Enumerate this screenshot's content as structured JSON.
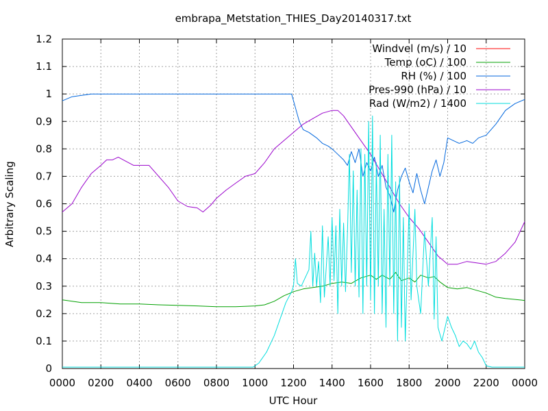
{
  "chart_data": {
    "type": "line",
    "title": "embrapa_Metstation_THIES_Day20140317.txt",
    "xlabel": "UTC Hour",
    "ylabel": "Arbitrary Scaling",
    "xlim": [
      0,
      24
    ],
    "ylim": [
      0,
      1.2
    ],
    "grid": true,
    "legend_position": "top-right",
    "x_ticks": [
      {
        "value": 0,
        "label": "0000"
      },
      {
        "value": 2,
        "label": "0200"
      },
      {
        "value": 4,
        "label": "0400"
      },
      {
        "value": 6,
        "label": "0600"
      },
      {
        "value": 8,
        "label": "0800"
      },
      {
        "value": 10,
        "label": "1000"
      },
      {
        "value": 12,
        "label": "1200"
      },
      {
        "value": 14,
        "label": "1400"
      },
      {
        "value": 16,
        "label": "1600"
      },
      {
        "value": 18,
        "label": "1800"
      },
      {
        "value": 20,
        "label": "2000"
      },
      {
        "value": 22,
        "label": "2200"
      },
      {
        "value": 24,
        "label": "0000"
      }
    ],
    "y_ticks": [
      {
        "value": 0,
        "label": "0"
      },
      {
        "value": 0.1,
        "label": "0.1"
      },
      {
        "value": 0.2,
        "label": "0.2"
      },
      {
        "value": 0.3,
        "label": "0.3"
      },
      {
        "value": 0.4,
        "label": "0.4"
      },
      {
        "value": 0.5,
        "label": "0.5"
      },
      {
        "value": 0.6,
        "label": "0.6"
      },
      {
        "value": 0.7,
        "label": "0.7"
      },
      {
        "value": 0.8,
        "label": "0.8"
      },
      {
        "value": 0.9,
        "label": "0.9"
      },
      {
        "value": 1.0,
        "label": "1"
      },
      {
        "value": 1.1,
        "label": "1.1"
      },
      {
        "value": 1.2,
        "label": "1.2"
      }
    ],
    "series": [
      {
        "name": "Windvel (m/s) / 10",
        "color": "#ff0000",
        "points": []
      },
      {
        "name": "Temp (oC) / 100",
        "color": "#00a000",
        "points": [
          [
            0,
            0.25
          ],
          [
            1,
            0.24
          ],
          [
            2,
            0.24
          ],
          [
            3,
            0.235
          ],
          [
            4,
            0.235
          ],
          [
            5,
            0.232
          ],
          [
            6,
            0.23
          ],
          [
            7,
            0.228
          ],
          [
            8,
            0.225
          ],
          [
            9,
            0.225
          ],
          [
            10,
            0.228
          ],
          [
            10.5,
            0.232
          ],
          [
            11,
            0.245
          ],
          [
            11.5,
            0.265
          ],
          [
            12,
            0.28
          ],
          [
            12.5,
            0.29
          ],
          [
            13,
            0.295
          ],
          [
            13.5,
            0.3
          ],
          [
            14,
            0.31
          ],
          [
            14.5,
            0.315
          ],
          [
            15,
            0.31
          ],
          [
            15.5,
            0.33
          ],
          [
            16,
            0.34
          ],
          [
            16.3,
            0.325
          ],
          [
            16.6,
            0.34
          ],
          [
            17,
            0.325
          ],
          [
            17.3,
            0.35
          ],
          [
            17.6,
            0.32
          ],
          [
            18,
            0.33
          ],
          [
            18.3,
            0.315
          ],
          [
            18.6,
            0.34
          ],
          [
            19,
            0.33
          ],
          [
            19.3,
            0.335
          ],
          [
            19.6,
            0.315
          ],
          [
            20,
            0.295
          ],
          [
            20.5,
            0.29
          ],
          [
            21,
            0.295
          ],
          [
            21.5,
            0.285
          ],
          [
            22,
            0.275
          ],
          [
            22.5,
            0.26
          ],
          [
            23,
            0.255
          ],
          [
            24,
            0.248
          ]
        ]
      },
      {
        "name": "RH (%) / 100",
        "color": "#0066dd",
        "points": [
          [
            0,
            0.975
          ],
          [
            0.5,
            0.99
          ],
          [
            1,
            0.995
          ],
          [
            1.5,
            1.0
          ],
          [
            2,
            1.0
          ],
          [
            4,
            1.0
          ],
          [
            6,
            1.0
          ],
          [
            8,
            1.0
          ],
          [
            10,
            1.0
          ],
          [
            11.9,
            1.0
          ],
          [
            12.1,
            0.95
          ],
          [
            12.3,
            0.9
          ],
          [
            12.5,
            0.87
          ],
          [
            12.8,
            0.86
          ],
          [
            13,
            0.85
          ],
          [
            13.2,
            0.84
          ],
          [
            13.5,
            0.82
          ],
          [
            13.8,
            0.81
          ],
          [
            14,
            0.8
          ],
          [
            14.3,
            0.78
          ],
          [
            14.6,
            0.76
          ],
          [
            14.8,
            0.74
          ],
          [
            15,
            0.79
          ],
          [
            15.2,
            0.75
          ],
          [
            15.4,
            0.8
          ],
          [
            15.6,
            0.7
          ],
          [
            15.8,
            0.75
          ],
          [
            16,
            0.72
          ],
          [
            16.2,
            0.77
          ],
          [
            16.4,
            0.7
          ],
          [
            16.6,
            0.74
          ],
          [
            16.8,
            0.66
          ],
          [
            17,
            0.63
          ],
          [
            17.2,
            0.57
          ],
          [
            17.4,
            0.65
          ],
          [
            17.6,
            0.7
          ],
          [
            17.8,
            0.73
          ],
          [
            18,
            0.68
          ],
          [
            18.2,
            0.64
          ],
          [
            18.4,
            0.71
          ],
          [
            18.6,
            0.65
          ],
          [
            18.8,
            0.6
          ],
          [
            19,
            0.66
          ],
          [
            19.2,
            0.72
          ],
          [
            19.4,
            0.76
          ],
          [
            19.6,
            0.7
          ],
          [
            19.8,
            0.75
          ],
          [
            20,
            0.84
          ],
          [
            20.3,
            0.83
          ],
          [
            20.6,
            0.82
          ],
          [
            21,
            0.83
          ],
          [
            21.3,
            0.82
          ],
          [
            21.6,
            0.84
          ],
          [
            22,
            0.85
          ],
          [
            22.5,
            0.89
          ],
          [
            23,
            0.94
          ],
          [
            23.5,
            0.965
          ],
          [
            24,
            0.98
          ]
        ]
      },
      {
        "name": "Pres-990 (hPa) / 10",
        "color": "#9900cc",
        "points": [
          [
            0,
            0.57
          ],
          [
            0.5,
            0.6
          ],
          [
            1,
            0.66
          ],
          [
            1.5,
            0.71
          ],
          [
            2,
            0.74
          ],
          [
            2.3,
            0.76
          ],
          [
            2.6,
            0.76
          ],
          [
            2.9,
            0.77
          ],
          [
            3.3,
            0.755
          ],
          [
            3.7,
            0.74
          ],
          [
            4,
            0.74
          ],
          [
            4.5,
            0.74
          ],
          [
            5,
            0.7
          ],
          [
            5.5,
            0.66
          ],
          [
            6,
            0.61
          ],
          [
            6.5,
            0.59
          ],
          [
            7,
            0.585
          ],
          [
            7.3,
            0.57
          ],
          [
            7.7,
            0.595
          ],
          [
            8,
            0.62
          ],
          [
            8.5,
            0.65
          ],
          [
            9,
            0.675
          ],
          [
            9.5,
            0.7
          ],
          [
            10,
            0.71
          ],
          [
            10.5,
            0.75
          ],
          [
            11,
            0.8
          ],
          [
            11.5,
            0.83
          ],
          [
            12,
            0.86
          ],
          [
            12.5,
            0.89
          ],
          [
            13,
            0.91
          ],
          [
            13.5,
            0.93
          ],
          [
            14,
            0.94
          ],
          [
            14.3,
            0.94
          ],
          [
            14.6,
            0.92
          ],
          [
            15,
            0.88
          ],
          [
            15.5,
            0.83
          ],
          [
            16,
            0.78
          ],
          [
            16.5,
            0.72
          ],
          [
            17,
            0.66
          ],
          [
            17.5,
            0.6
          ],
          [
            18,
            0.55
          ],
          [
            18.5,
            0.51
          ],
          [
            19,
            0.46
          ],
          [
            19.5,
            0.41
          ],
          [
            20,
            0.38
          ],
          [
            20.5,
            0.38
          ],
          [
            21,
            0.39
          ],
          [
            21.5,
            0.385
          ],
          [
            22,
            0.38
          ],
          [
            22.5,
            0.39
          ],
          [
            23,
            0.42
          ],
          [
            23.5,
            0.46
          ],
          [
            24,
            0.535
          ]
        ]
      },
      {
        "name": "Rad (W/m2) / 1400",
        "color": "#00dddd",
        "points": [
          [
            0,
            0.005
          ],
          [
            5,
            0.005
          ],
          [
            9.9,
            0.005
          ],
          [
            10.2,
            0.02
          ],
          [
            10.6,
            0.06
          ],
          [
            11,
            0.12
          ],
          [
            11.3,
            0.18
          ],
          [
            11.6,
            0.24
          ],
          [
            11.9,
            0.28
          ],
          [
            12,
            0.3
          ],
          [
            12.1,
            0.4
          ],
          [
            12.2,
            0.31
          ],
          [
            12.4,
            0.3
          ],
          [
            12.6,
            0.33
          ],
          [
            12.8,
            0.36
          ],
          [
            12.9,
            0.5
          ],
          [
            13,
            0.3
          ],
          [
            13.1,
            0.42
          ],
          [
            13.2,
            0.3
          ],
          [
            13.3,
            0.39
          ],
          [
            13.4,
            0.24
          ],
          [
            13.5,
            0.52
          ],
          [
            13.6,
            0.26
          ],
          [
            13.8,
            0.48
          ],
          [
            13.9,
            0.3
          ],
          [
            14,
            0.55
          ],
          [
            14.1,
            0.32
          ],
          [
            14.2,
            0.52
          ],
          [
            14.3,
            0.2
          ],
          [
            14.4,
            0.58
          ],
          [
            14.5,
            0.3
          ],
          [
            14.6,
            0.53
          ],
          [
            14.7,
            0.28
          ],
          [
            14.8,
            0.5
          ],
          [
            14.9,
            0.78
          ],
          [
            15,
            0.35
          ],
          [
            15.1,
            0.72
          ],
          [
            15.2,
            0.3
          ],
          [
            15.3,
            0.65
          ],
          [
            15.4,
            0.26
          ],
          [
            15.5,
            0.8
          ],
          [
            15.6,
            0.2
          ],
          [
            15.7,
            0.78
          ],
          [
            15.8,
            0.3
          ],
          [
            15.9,
            0.9
          ],
          [
            16,
            0.25
          ],
          [
            16.1,
            0.92
          ],
          [
            16.2,
            0.2
          ],
          [
            16.3,
            0.75
          ],
          [
            16.4,
            0.3
          ],
          [
            16.5,
            0.85
          ],
          [
            16.6,
            0.2
          ],
          [
            16.7,
            0.58
          ],
          [
            16.8,
            0.15
          ],
          [
            16.9,
            0.78
          ],
          [
            17,
            0.3
          ],
          [
            17.1,
            0.85
          ],
          [
            17.2,
            0.2
          ],
          [
            17.3,
            0.68
          ],
          [
            17.4,
            0.1
          ],
          [
            17.5,
            0.7
          ],
          [
            17.6,
            0.15
          ],
          [
            17.7,
            0.55
          ],
          [
            17.8,
            0.1
          ],
          [
            18,
            0.6
          ],
          [
            18.1,
            0.25
          ],
          [
            18.3,
            0.58
          ],
          [
            18.4,
            0.3
          ],
          [
            18.6,
            0.2
          ],
          [
            18.8,
            0.5
          ],
          [
            19,
            0.3
          ],
          [
            19.2,
            0.55
          ],
          [
            19.3,
            0.18
          ],
          [
            19.4,
            0.48
          ],
          [
            19.5,
            0.15
          ],
          [
            19.7,
            0.1
          ],
          [
            19.9,
            0.16
          ],
          [
            20,
            0.19
          ],
          [
            20.2,
            0.15
          ],
          [
            20.4,
            0.12
          ],
          [
            20.6,
            0.08
          ],
          [
            20.8,
            0.1
          ],
          [
            21,
            0.09
          ],
          [
            21.2,
            0.07
          ],
          [
            21.4,
            0.1
          ],
          [
            21.6,
            0.06
          ],
          [
            21.8,
            0.04
          ],
          [
            22,
            0.01
          ],
          [
            22.3,
            0.005
          ],
          [
            24,
            0.005
          ]
        ]
      }
    ]
  }
}
